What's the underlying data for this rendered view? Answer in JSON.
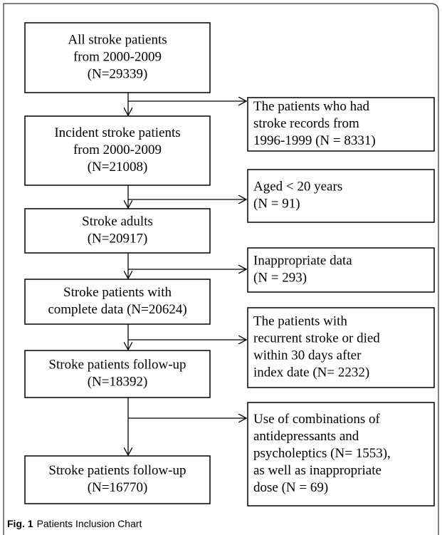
{
  "nodes": [
    {
      "lines": [
        "All stroke patients",
        "from 2000-2009",
        "(N=29339)"
      ]
    },
    {
      "lines": [
        "Incident stroke patients",
        "from 2000-2009",
        "(N=21008)"
      ]
    },
    {
      "lines": [
        "Stroke adults",
        "(N=20917)"
      ]
    },
    {
      "lines": [
        "Stroke patients with",
        "complete data (N=20624)"
      ]
    },
    {
      "lines": [
        "Stroke patients follow-up",
        "(N=18392)"
      ]
    },
    {
      "lines": [
        "Stroke patients follow-up",
        "(N=16770)"
      ]
    }
  ],
  "exclusions": [
    {
      "lines": [
        "The patients who had",
        "stroke records from",
        "1996-1999 (N = 8331)"
      ]
    },
    {
      "lines": [
        "Aged < 20 years",
        "(N = 91)"
      ]
    },
    {
      "lines": [
        "Inappropriate data",
        "(N = 293)"
      ]
    },
    {
      "lines": [
        "The patients with",
        "recurrent stroke or died",
        "within 30 days after",
        "index date (N= 2232)"
      ]
    },
    {
      "lines": [
        "Use of combinations of",
        "antidepressants and",
        "psycholeptics (N= 1553),",
        "as well as inappropriate",
        "dose (N = 69)"
      ]
    }
  ],
  "caption": {
    "label": "Fig. 1",
    "text": "Patients Inclusion Chart"
  }
}
